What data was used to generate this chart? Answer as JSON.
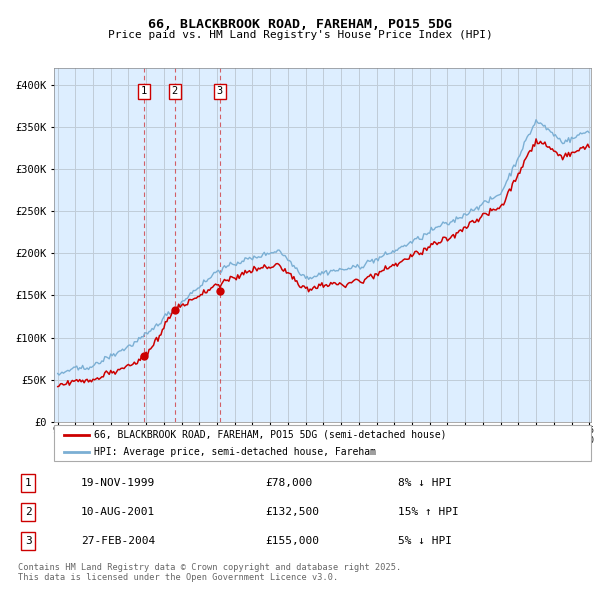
{
  "title": "66, BLACKBROOK ROAD, FAREHAM, PO15 5DG",
  "subtitle": "Price paid vs. HM Land Registry's House Price Index (HPI)",
  "legend_line1": "66, BLACKBROOK ROAD, FAREHAM, PO15 5DG (semi-detached house)",
  "legend_line2": "HPI: Average price, semi-detached house, Fareham",
  "transactions": [
    {
      "num": 1,
      "date": "19-NOV-1999",
      "price": 78000,
      "year": 1999.88,
      "pct": "8%",
      "dir": "↓"
    },
    {
      "num": 2,
      "date": "10-AUG-2001",
      "price": 132500,
      "year": 2001.61,
      "pct": "15%",
      "dir": "↑"
    },
    {
      "num": 3,
      "date": "27-FEB-2004",
      "price": 155000,
      "year": 2004.15,
      "pct": "5%",
      "dir": "↓"
    }
  ],
  "footnote": "Contains HM Land Registry data © Crown copyright and database right 2025.\nThis data is licensed under the Open Government Licence v3.0.",
  "red_color": "#cc0000",
  "blue_color": "#7bafd4",
  "bg_color": "#ddeeff",
  "grid_color": "#c8d8e8",
  "ylim": [
    0,
    420000
  ],
  "yticks": [
    0,
    50000,
    100000,
    150000,
    200000,
    250000,
    300000,
    350000,
    400000
  ],
  "year_start": 1995,
  "year_end": 2025
}
